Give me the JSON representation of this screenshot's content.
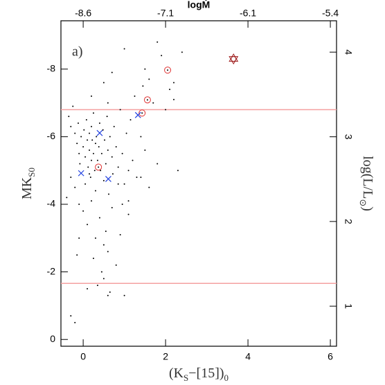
{
  "chart_data": {
    "type": "scatter",
    "annotation": "a)",
    "xlabel": [
      {
        "text": "(K"
      },
      {
        "text": "S",
        "sub": true
      },
      {
        "text": "−[15])"
      },
      {
        "text": "0",
        "sub": true
      }
    ],
    "ylabel": [
      {
        "text": "MK"
      },
      {
        "text": "S0",
        "sub": true
      }
    ],
    "y2label": [
      {
        "text": "log(L/L"
      },
      {
        "text": "⊙",
        "sub": true
      },
      {
        "text": ")"
      }
    ],
    "x2label": "logṀ",
    "xlim": [
      -0.54,
      6.15
    ],
    "xticks": [
      0,
      2,
      4,
      6
    ],
    "ylim": [
      0.2,
      -9.43
    ],
    "yticks": [
      0,
      -2,
      -4,
      -6,
      -8
    ],
    "y2lim": [
      0.527,
      4.37
    ],
    "y2ticks": [
      1,
      2,
      3,
      4
    ],
    "x2ticks": [
      -8.6,
      -7.1,
      -6.1,
      -5.4
    ],
    "x2tick_positions": [
      0,
      2,
      4,
      6
    ],
    "hlines": [
      -6.8,
      -1.66
    ],
    "hline_color": "#f4a0a0",
    "groups": [
      {
        "marker": "dot",
        "color": "#000000",
        "x": [
          -0.35,
          -0.3,
          -0.25,
          -0.2,
          -0.15,
          -0.12,
          -0.1,
          -0.08,
          -0.05,
          0.0,
          0.02,
          0.05,
          0.05,
          0.08,
          0.1,
          0.12,
          0.15,
          0.15,
          0.18,
          0.2,
          0.2,
          0.22,
          0.25,
          0.25,
          0.28,
          0.3,
          0.3,
          0.32,
          0.35,
          0.38,
          0.4,
          0.42,
          0.45,
          0.48,
          0.5,
          0.52,
          0.55,
          0.58,
          0.6,
          0.62,
          0.65,
          0.7,
          0.72,
          0.75,
          0.8,
          0.85,
          0.9,
          0.95,
          1.0,
          1.05,
          1.1,
          1.15,
          1.2,
          1.25,
          1.3,
          1.4,
          1.45,
          1.5,
          1.6,
          1.7,
          1.8,
          1.9,
          2.0,
          2.1,
          2.2,
          2.3,
          1.0,
          1.5,
          0.7,
          0.5,
          0.2,
          0.6,
          1.8,
          2.4,
          2.2,
          -0.2,
          -0.1,
          0.0,
          0.1,
          0.2,
          0.3,
          0.4,
          0.5,
          0.55,
          0.6,
          0.7,
          0.8,
          0.9,
          0.45,
          0.5,
          0.6,
          0.35,
          0.65,
          1.0,
          0.1,
          -0.15,
          -0.3,
          -0.3,
          -0.2,
          -0.1,
          0.85,
          1.1,
          0.25,
          1.1,
          0.15,
          0.95,
          1.6,
          1.4,
          -0.4
        ],
        "y": [
          -6.6,
          -6.3,
          -6.9,
          -6.1,
          -5.8,
          -6.4,
          -5.5,
          -5.2,
          -6.0,
          -5.7,
          -6.2,
          -5.4,
          -4.6,
          -6.5,
          -5.9,
          -5.1,
          -6.1,
          -5.6,
          -4.8,
          -5.3,
          -6.3,
          -5.9,
          -5.5,
          -6.7,
          -5.0,
          -5.8,
          -4.4,
          -6.0,
          -5.3,
          -5.7,
          -6.4,
          -5.0,
          -5.5,
          -6.2,
          -4.7,
          -5.9,
          -5.2,
          -6.6,
          -5.6,
          -4.3,
          -6.0,
          -5.4,
          -4.9,
          -6.3,
          -5.7,
          -5.1,
          -6.8,
          -5.5,
          -4.6,
          -6.1,
          -5.0,
          -6.5,
          -5.3,
          -7.2,
          -4.8,
          -6.0,
          -7.5,
          -5.6,
          -7.7,
          -7.0,
          -5.2,
          -8.4,
          -6.8,
          -7.4,
          -7.6,
          -5.0,
          -8.6,
          -8.0,
          -7.9,
          -7.6,
          -7.2,
          -7.0,
          -8.8,
          -8.5,
          -7.1,
          -4.5,
          -4.0,
          -3.8,
          -3.4,
          -4.1,
          -3.0,
          -3.6,
          -2.8,
          -3.2,
          -2.6,
          -3.9,
          -2.2,
          -3.1,
          -2.0,
          -1.8,
          -1.3,
          -1.6,
          -1.4,
          -1.3,
          -1.5,
          -2.5,
          -4.8,
          -0.7,
          -0.5,
          -3.0,
          -4.6,
          -3.7,
          -2.4,
          -4.1,
          -4.9,
          -4.0,
          -4.5,
          -4.8,
          -4.2
        ]
      },
      {
        "marker": "circle-dot",
        "color": "#e03030",
        "x": [
          0.37,
          1.43,
          1.56,
          2.05
        ],
        "y": [
          -5.1,
          -6.7,
          -7.09,
          -7.97
        ]
      },
      {
        "marker": "star-circle",
        "color": "#a02020",
        "x": [
          3.65
        ],
        "y": [
          -8.3
        ]
      },
      {
        "marker": "cross",
        "color": "#2040e0",
        "x": [
          -0.05,
          0.4,
          0.61,
          1.33
        ],
        "y": [
          -4.92,
          -6.11,
          -4.75,
          -6.64
        ]
      }
    ]
  }
}
